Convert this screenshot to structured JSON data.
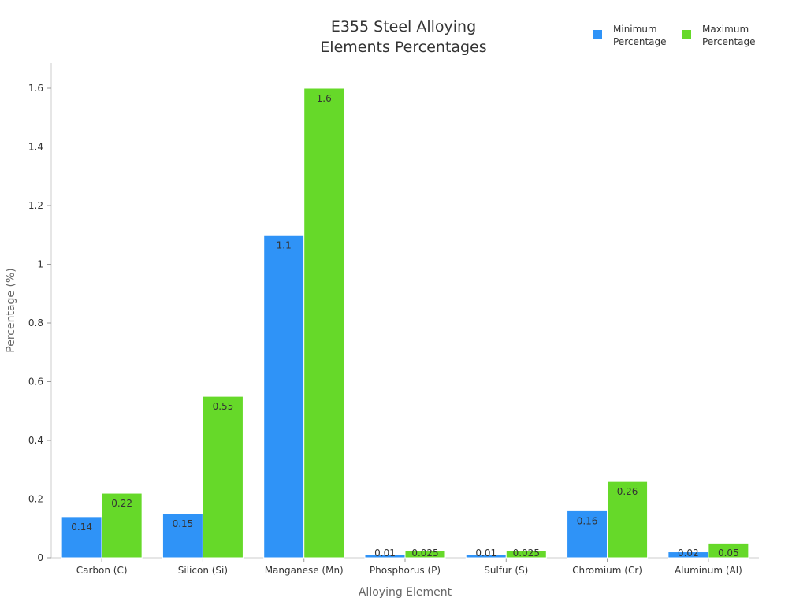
{
  "chart_data": {
    "type": "bar",
    "title": [
      "E355 Steel Alloying",
      "Elements Percentages"
    ],
    "xlabel": "Alloying Element",
    "ylabel": "Percentage (%)",
    "categories": [
      "Carbon (C)",
      "Silicon (Si)",
      "Manganese (Mn)",
      "Phosphorus (P)",
      "Sulfur (S)",
      "Chromium (Cr)",
      "Aluminum (Al)"
    ],
    "series": [
      {
        "name": "Minimum Percentage",
        "legend": [
          "Minimum",
          "Percentage"
        ],
        "color": "#2f93f7",
        "values": [
          0.14,
          0.15,
          1.1,
          0.01,
          0.01,
          0.16,
          0.02
        ],
        "labels": [
          "0.14",
          "0.15",
          "1.1",
          "0.01",
          "0.01",
          "0.16",
          "0.02"
        ]
      },
      {
        "name": "Maximum Percentage",
        "legend": [
          "Maximum",
          "Percentage"
        ],
        "color": "#66d929",
        "values": [
          0.22,
          0.55,
          1.6,
          0.025,
          0.025,
          0.26,
          0.05
        ],
        "labels": [
          "0.22",
          "0.55",
          "1.6",
          "0.025",
          "0.025",
          "0.26",
          "0.05"
        ]
      }
    ],
    "yticks": [
      "0",
      "0.2",
      "0.4",
      "0.6",
      "0.8",
      "1",
      "1.2",
      "1.4",
      "1.6"
    ],
    "ylim": [
      0,
      1.68
    ],
    "grid": false,
    "legend_position": "top-right"
  }
}
